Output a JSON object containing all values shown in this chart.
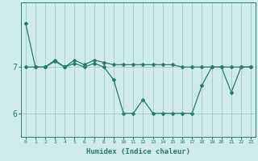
{
  "x_values": [
    0,
    1,
    2,
    3,
    4,
    5,
    6,
    7,
    8,
    9,
    10,
    11,
    12,
    13,
    14,
    15,
    16,
    17,
    18,
    19,
    20,
    21,
    22,
    23
  ],
  "line1_y": [
    7.95,
    7.0,
    7.0,
    7.12,
    7.0,
    7.08,
    7.0,
    7.08,
    7.0,
    6.72,
    6.0,
    6.0,
    6.3,
    6.0,
    6.0,
    6.0,
    6.0,
    6.0,
    6.6,
    7.0,
    7.0,
    6.45,
    7.0,
    7.0
  ],
  "line2_y": [
    7.0,
    7.0,
    7.0,
    7.15,
    7.0,
    7.15,
    7.05,
    7.15,
    7.1,
    7.05,
    7.05,
    7.05,
    7.05,
    7.05,
    7.05,
    7.05,
    7.0,
    7.0,
    7.0,
    7.0,
    7.0,
    7.0,
    7.0,
    7.0
  ],
  "line_color": "#2d7d6e",
  "bg_color": "#ceecea",
  "grid_color": "#aacfcc",
  "xlabel": "Humidex (Indice chaleur)",
  "ytick_labels": [
    "6",
    "7"
  ],
  "ytick_positions": [
    6.0,
    7.0
  ],
  "ylim": [
    5.5,
    8.4
  ],
  "xlim": [
    -0.5,
    23.5
  ]
}
